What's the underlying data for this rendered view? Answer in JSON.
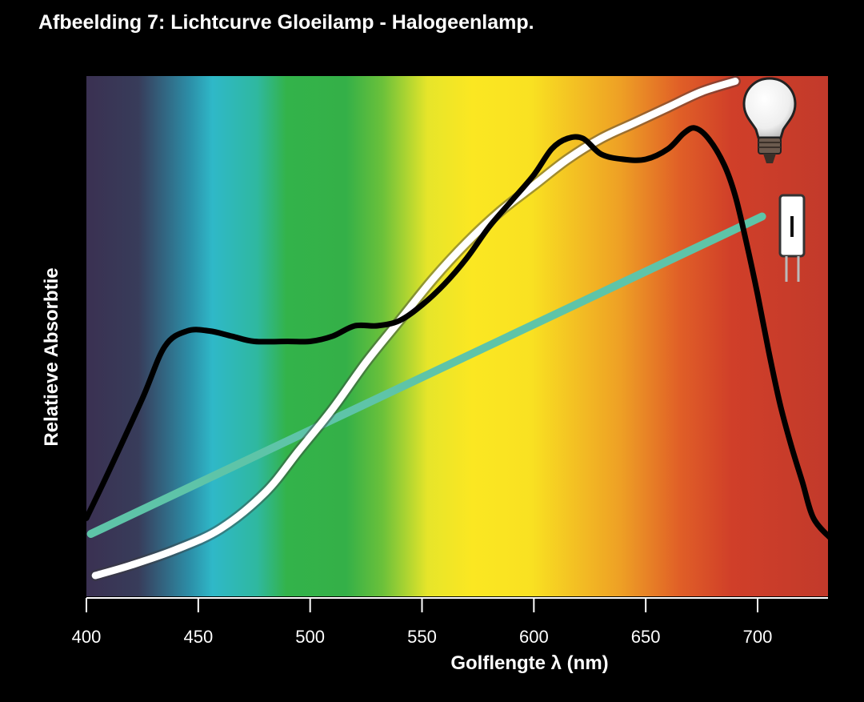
{
  "chart_data": {
    "type": "line",
    "title": "Afbeelding 7: Lichtcurve Gloeilamp - Halogeenlamp.",
    "xlabel": "Golflengte λ (nm)",
    "ylabel": "Relatieve Absorbtie",
    "xlim": [
      400,
      733
    ],
    "ylim": [
      0,
      1
    ],
    "xticks": [
      "400",
      "450",
      "500",
      "550",
      "600",
      "650",
      "700"
    ],
    "background": "visible light spectrum gradient (violet to red)",
    "grid": false,
    "legend": "icons at right end of lines (incandescent bulb, halogen bulb)",
    "series": [
      {
        "id": "absorption",
        "color": "#000000",
        "x": [
          400,
          410,
          425,
          435,
          445,
          455,
          465,
          475,
          490,
          500,
          510,
          520,
          530,
          540,
          550,
          560,
          570,
          580,
          590,
          600,
          608,
          615,
          622,
          630,
          640,
          650,
          660,
          667,
          672,
          678,
          685,
          690,
          695,
          700,
          705,
          710,
          715,
          720,
          725,
          733
        ],
        "y": [
          0.15,
          0.24,
          0.38,
          0.48,
          0.51,
          0.51,
          0.5,
          0.49,
          0.49,
          0.49,
          0.5,
          0.52,
          0.52,
          0.53,
          0.56,
          0.6,
          0.65,
          0.71,
          0.76,
          0.81,
          0.86,
          0.88,
          0.88,
          0.85,
          0.84,
          0.84,
          0.86,
          0.89,
          0.9,
          0.88,
          0.83,
          0.77,
          0.68,
          0.58,
          0.47,
          0.37,
          0.29,
          0.22,
          0.15,
          0.11
        ]
      },
      {
        "id": "gloeilamp",
        "color": "#ffffff",
        "x": [
          404,
          420,
          440,
          460,
          480,
          495,
          510,
          525,
          540,
          555,
          570,
          585,
          600,
          615,
          630,
          645,
          660,
          675,
          690
        ],
        "y": [
          0.04,
          0.06,
          0.09,
          0.13,
          0.2,
          0.28,
          0.36,
          0.45,
          0.53,
          0.61,
          0.68,
          0.74,
          0.79,
          0.84,
          0.88,
          0.91,
          0.94,
          0.97,
          0.99
        ]
      },
      {
        "id": "halogeenlamp",
        "color": "#5ec4a8",
        "x": [
          402,
          702
        ],
        "y": [
          0.12,
          0.73
        ]
      }
    ]
  },
  "icons": {
    "gloeilamp_icon": "incandescent-bulb-icon",
    "halogeenlamp_icon": "halogen-bulb-icon"
  },
  "colors": {
    "background": "#000000",
    "text": "#ffffff"
  }
}
